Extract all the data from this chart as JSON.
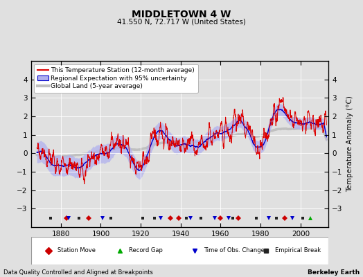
{
  "title": "MIDDLETOWN 4 W",
  "subtitle": "41.550 N, 72.717 W (United States)",
  "xlabel_left": "Data Quality Controlled and Aligned at Breakpoints",
  "xlabel_right": "Berkeley Earth",
  "ylabel": "Temperature Anomaly (°C)",
  "xlim": [
    1865,
    2014
  ],
  "ylim": [
    -4,
    5
  ],
  "yticks": [
    -3,
    -2,
    -1,
    0,
    1,
    2,
    3,
    4
  ],
  "xticks": [
    1880,
    1900,
    1920,
    1940,
    1960,
    1980,
    2000
  ],
  "start_year": 1868,
  "num_months": 1740,
  "bg_color": "#e0e0e0",
  "plot_bg_color": "#e0e0e0",
  "station_color": "#dd0000",
  "regional_color": "#0000cc",
  "regional_fill_color": "#b0b0ee",
  "global_color": "#c0c0c0",
  "legend_items": [
    {
      "label": "This Temperature Station (12-month average)",
      "color": "#dd0000",
      "lw": 1.2
    },
    {
      "label": "Regional Expectation with 95% uncertainty",
      "color": "#0000cc",
      "fill": "#b0b0ee",
      "lw": 1.2
    },
    {
      "label": "Global Land (5-year average)",
      "color": "#c0c0c0",
      "lw": 3
    }
  ],
  "marker_items": [
    {
      "label": "Station Move",
      "color": "#cc0000",
      "marker": "D"
    },
    {
      "label": "Record Gap",
      "color": "#00aa00",
      "marker": "^"
    },
    {
      "label": "Time of Obs. Change",
      "color": "#0000cc",
      "marker": "v"
    },
    {
      "label": "Empirical Break",
      "color": "#333333",
      "marker": "s"
    }
  ],
  "station_moves": [
    1883,
    1894,
    1935,
    1939,
    1960,
    1969,
    1992
  ],
  "record_gaps": [
    2005
  ],
  "time_obs_changes": [
    1884,
    1901,
    1930,
    1945,
    1957,
    1964,
    1984,
    1996
  ],
  "empirical_breaks": [
    1875,
    1889,
    1905,
    1921,
    1927,
    1943,
    1950,
    1966,
    1978,
    1988,
    2001
  ]
}
